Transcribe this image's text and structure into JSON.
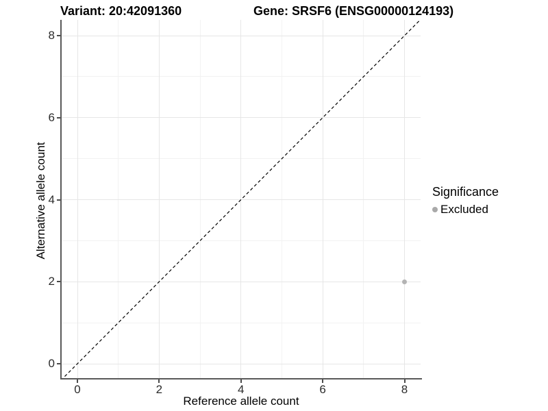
{
  "chart_data": {
    "type": "scatter",
    "title_left": "Variant: 20:42091360",
    "title_right": "Gene: SRSF6 (ENSG00000124193)",
    "xlabel": "Reference allele count",
    "ylabel": "Alternative allele count",
    "x_ticks": [
      0,
      2,
      4,
      6,
      8
    ],
    "y_ticks": [
      0,
      2,
      4,
      6,
      8
    ],
    "xlim": [
      -0.4,
      8.4
    ],
    "ylim": [
      -0.4,
      8.4
    ],
    "grid": "major and minor, light gray on white",
    "identity_line": {
      "slope": 1,
      "intercept": 0,
      "style": "dashed",
      "color": "#000000"
    },
    "series": [
      {
        "name": "Excluded",
        "color": "#b3b3b3",
        "points": [
          {
            "x": 8,
            "y": 2
          }
        ]
      }
    ],
    "legend": {
      "position": "right",
      "title": "Significance",
      "items": [
        {
          "label": "Excluded",
          "color": "#a9a9a9"
        }
      ]
    }
  },
  "colors": {
    "background": "#ffffff",
    "grid_major": "#e6e6e6",
    "grid_minor": "#f2f2f2",
    "axis_line": "#585858",
    "tick_text": "#2b2b2b",
    "point": "#b3b3b3"
  }
}
